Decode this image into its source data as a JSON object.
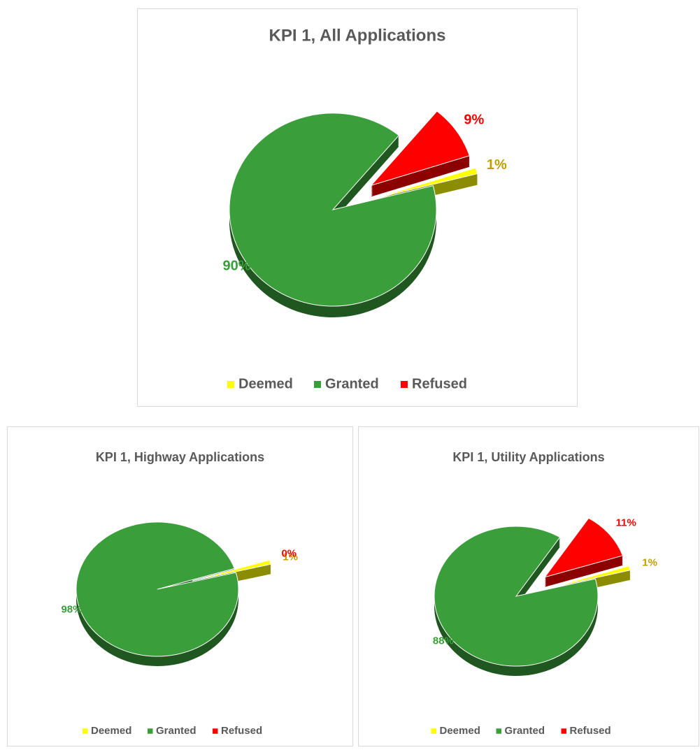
{
  "chart_data": [
    {
      "type": "pie",
      "title": "KPI 1, All Applications",
      "categories": [
        "Deemed",
        "Granted",
        "Refused"
      ],
      "values": [
        1,
        90,
        9
      ],
      "value_labels": [
        "1%",
        "90%",
        "9%"
      ],
      "colors": [
        "#ffff00",
        "#3a9e3a",
        "#ff0000"
      ],
      "label_colors": [
        "#bf9f00",
        "#3a9e3a",
        "#ff0000"
      ],
      "exploded": [
        true,
        false,
        true
      ],
      "legend": "bottom"
    },
    {
      "type": "pie",
      "title": "KPI 1, Highway Applications",
      "categories": [
        "Deemed",
        "Granted",
        "Refused"
      ],
      "values": [
        1,
        98,
        0
      ],
      "value_labels": [
        "1%",
        "98%",
        "0%"
      ],
      "colors": [
        "#ffff00",
        "#3a9e3a",
        "#ff0000"
      ],
      "label_colors": [
        "#bf9f00",
        "#3a9e3a",
        "#ff0000"
      ],
      "exploded": [
        true,
        false,
        true
      ],
      "legend": "bottom"
    },
    {
      "type": "pie",
      "title": "KPI 1, Utility Applications",
      "categories": [
        "Deemed",
        "Granted",
        "Refused"
      ],
      "values": [
        1,
        88,
        11
      ],
      "value_labels": [
        "1%",
        "88%",
        "11%"
      ],
      "colors": [
        "#ffff00",
        "#3a9e3a",
        "#ff0000"
      ],
      "label_colors": [
        "#bf9f00",
        "#3a9e3a",
        "#ff0000"
      ],
      "exploded": [
        true,
        false,
        true
      ],
      "legend": "bottom"
    }
  ]
}
